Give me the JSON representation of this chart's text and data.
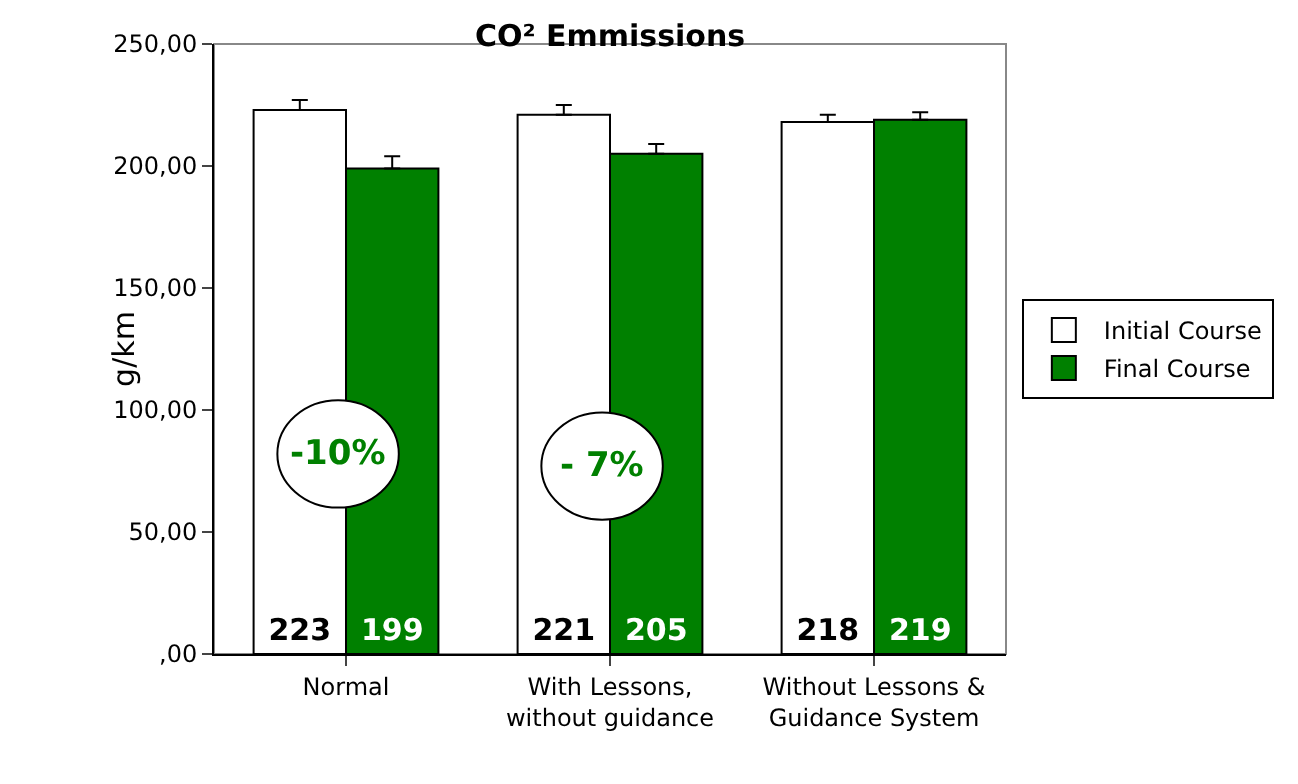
{
  "chart_data": {
    "type": "bar",
    "title": "CO² Emmissions",
    "ylabel": "g/km",
    "categories": [
      "Normal",
      "With Lessons,\nwithout guidance",
      "Without Lessons &\nGuidance System"
    ],
    "series": [
      {
        "name": "Initial Course",
        "color": "#ffffff",
        "values": [
          223,
          221,
          218
        ],
        "errors": [
          [
            223,
            227
          ],
          [
            221,
            225
          ],
          [
            218,
            221
          ]
        ]
      },
      {
        "name": "Final Course",
        "color": "#008000",
        "values": [
          199,
          205,
          219
        ],
        "errors": [
          [
            199,
            204
          ],
          [
            205,
            209
          ],
          [
            219,
            222
          ]
        ]
      }
    ],
    "ylim": [
      0,
      250
    ],
    "yticks": [
      {
        "value": 0,
        "label": ",00"
      },
      {
        "value": 50,
        "label": "50,00"
      },
      {
        "value": 100,
        "label": "100,00"
      },
      {
        "value": 150,
        "label": "150,00"
      },
      {
        "value": 200,
        "label": "200,00"
      },
      {
        "value": 250,
        "label": "250,00"
      }
    ],
    "data_labels": true,
    "annotations": [
      {
        "text": "-10%",
        "x": "Normal",
        "y": 82
      },
      {
        "text": "- 7%",
        "x": "With Lessons,\nwithout guidance",
        "y": 77
      }
    ],
    "grid": false,
    "legend": "right"
  }
}
